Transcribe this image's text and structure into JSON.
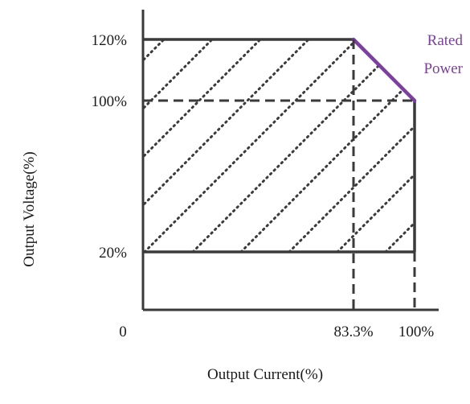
{
  "diagram": {
    "y_axis_label": "Output Voltage(%)",
    "x_axis_label": "Output Current(%)",
    "y_ticks": [
      "120%",
      "100%",
      "20%"
    ],
    "x_ticks": [
      "83.3%",
      "100%"
    ],
    "origin_label": "0",
    "annotation": {
      "line1": "Rated",
      "line2": "Power"
    },
    "colors": {
      "outline": "#3a3a3a",
      "hatch": "#3a3a3a",
      "rated_power": "#7b3fa0",
      "text": "#1a1a1a"
    }
  }
}
